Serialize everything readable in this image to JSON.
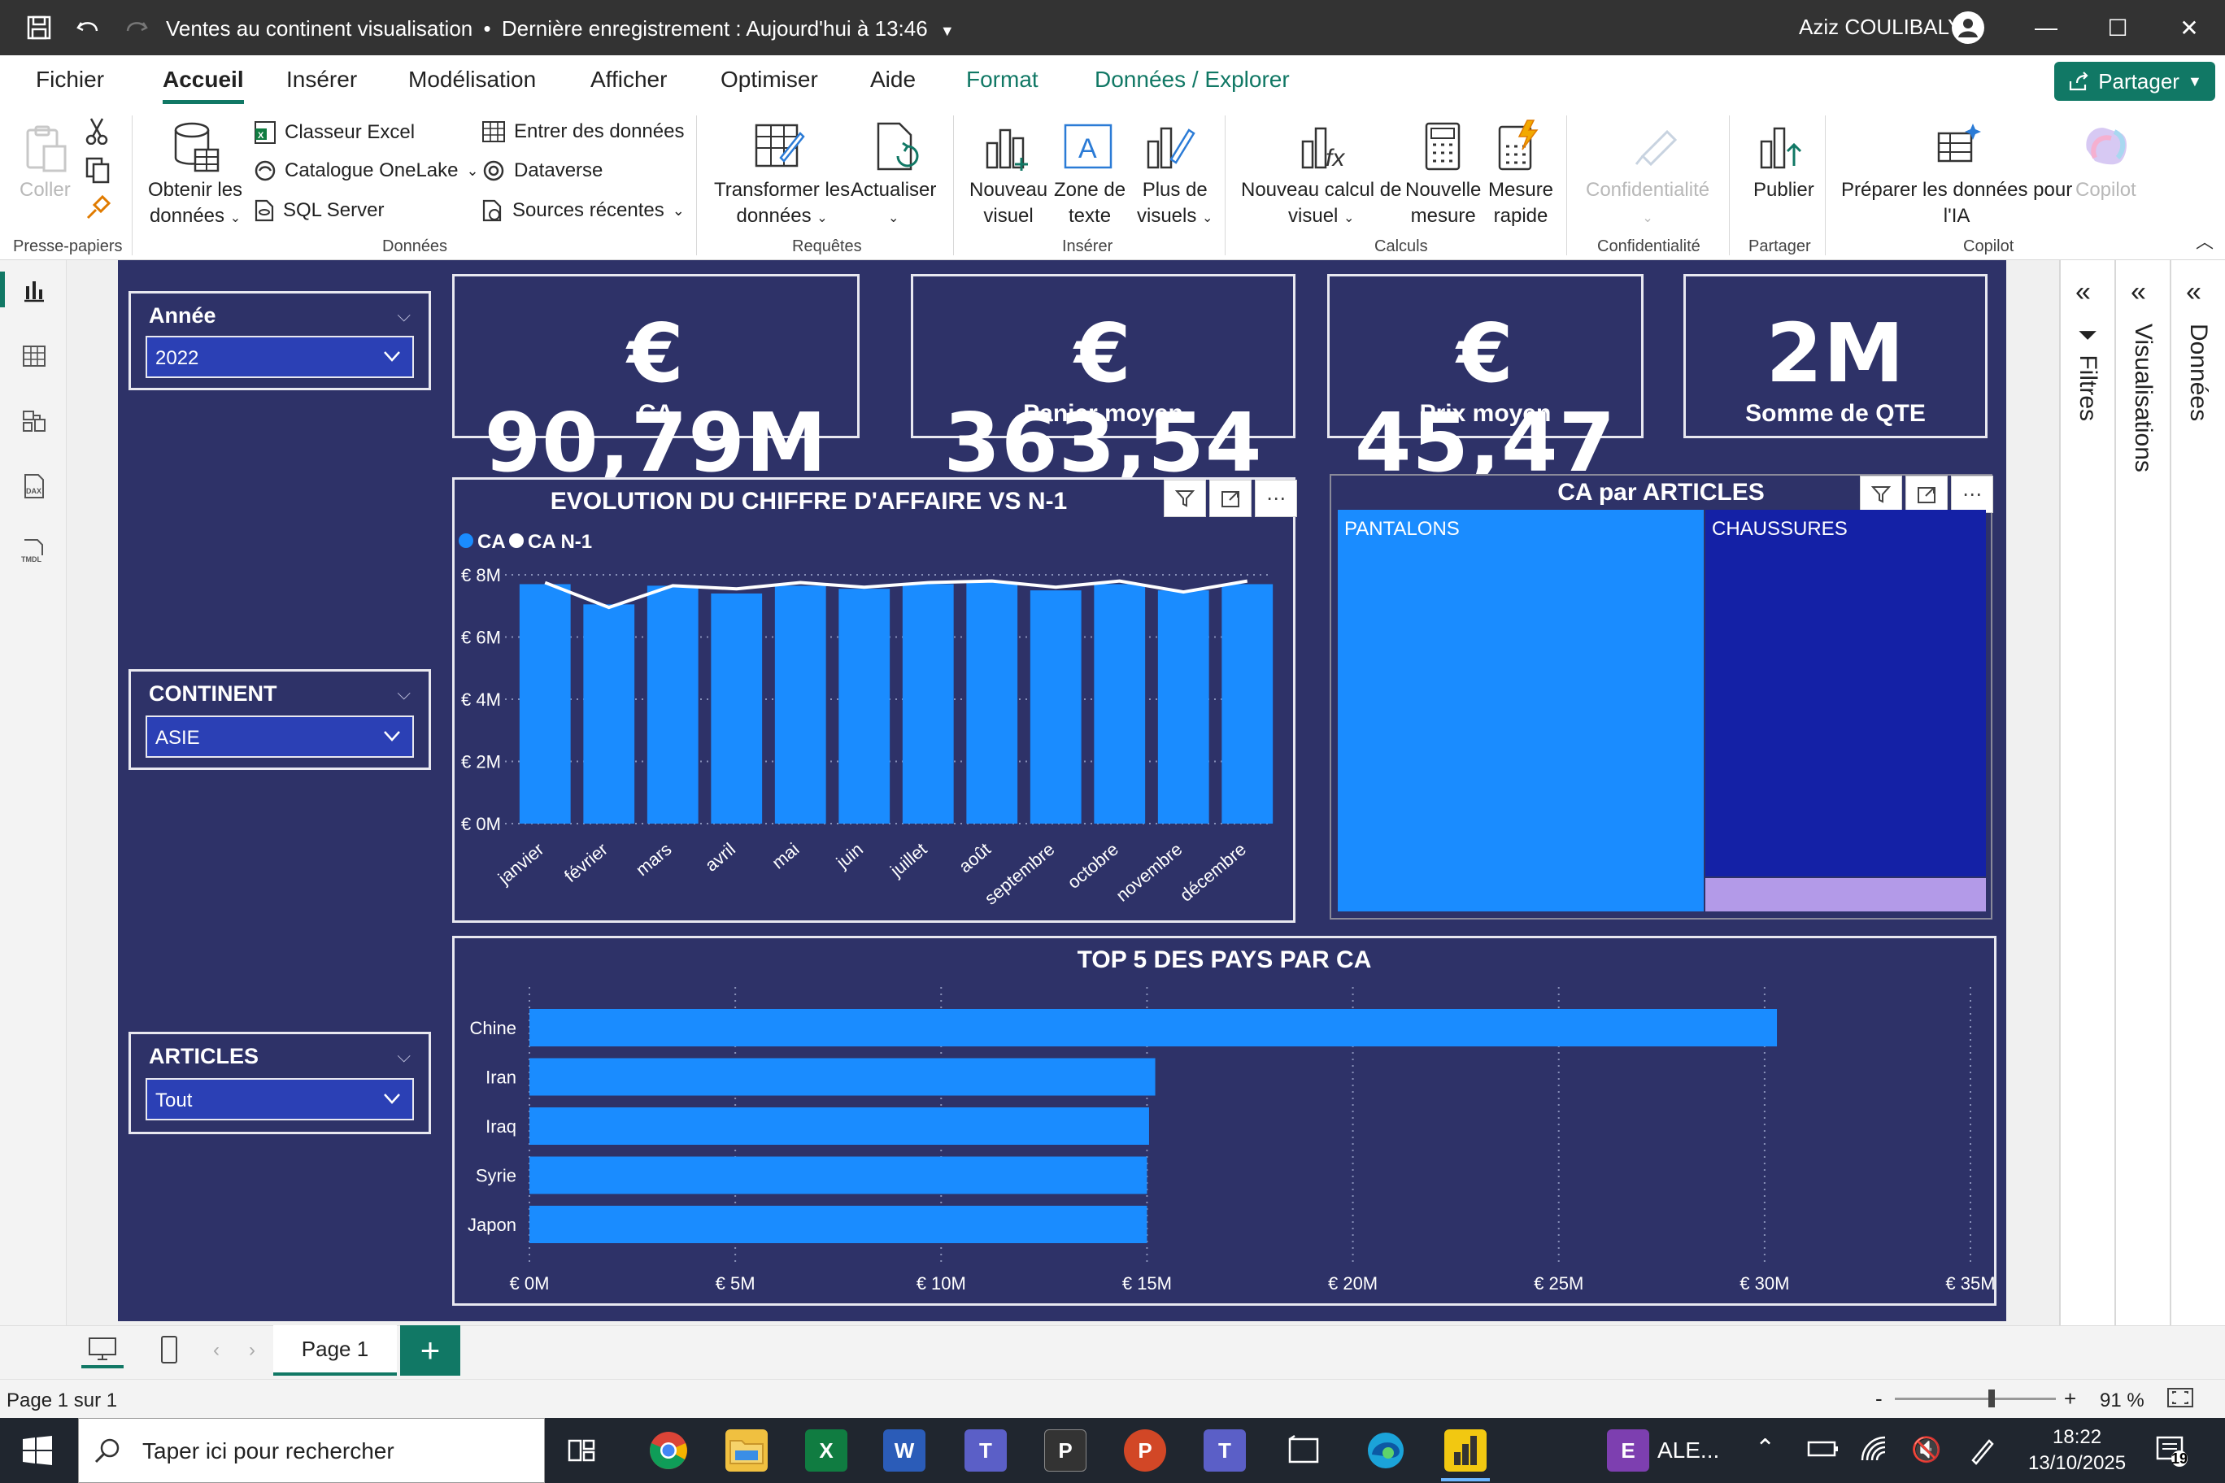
{
  "titlebar": {
    "title": "Ventes au continent visualisation",
    "separator": "•",
    "saved": "Dernière enregistrement : Aujourd'hui à 13:46",
    "user": "Aziz COULIBALY"
  },
  "menu": {
    "tabs": [
      "Fichier",
      "Accueil",
      "Insérer",
      "Modélisation",
      "Afficher",
      "Optimiser",
      "Aide",
      "Format",
      "Données / Explorer"
    ],
    "share_label": "Partager"
  },
  "ribbon": {
    "paste": "Coller",
    "get_data_1": "Obtenir les",
    "get_data_2": "données",
    "excel": "Classeur Excel",
    "onelake": "Catalogue OneLake",
    "sql": "SQL Server",
    "enter_data": "Entrer des données",
    "dataverse": "Dataverse",
    "recent": "Sources récentes",
    "transform_1": "Transformer les",
    "transform_2": "données",
    "refresh": "Actualiser",
    "new_visual_1": "Nouveau",
    "new_visual_2": "visuel",
    "textbox_1": "Zone de",
    "textbox_2": "texte",
    "more_visuals_1": "Plus de",
    "more_visuals_2": "visuels",
    "new_calc_1": "Nouveau calcul de",
    "new_calc_2": "visuel",
    "new_measure_1": "Nouvelle",
    "new_measure_2": "mesure",
    "quick_measure_1": "Mesure",
    "quick_measure_2": "rapide",
    "sensitivity": "Confidentialité",
    "publish": "Publier",
    "prepare_1": "Préparer les données pour",
    "prepare_2": "l'IA",
    "copilot": "Copilot",
    "groups": {
      "clipboard": "Presse-papiers",
      "data": "Données",
      "queries": "Requêtes",
      "insert": "Insérer",
      "calculations": "Calculs",
      "sensitivity": "Confidentialité",
      "share": "Partager",
      "copilot": "Copilot"
    }
  },
  "slicers": [
    {
      "title": "Année",
      "value": "2022"
    },
    {
      "title": "CONTINENT",
      "value": "ASIE"
    },
    {
      "title": "ARTICLES",
      "value": "Tout"
    }
  ],
  "kpis": [
    {
      "value": "€ 90,79M",
      "label": "CA"
    },
    {
      "value": "€ 363,54",
      "label": "Panier moyen"
    },
    {
      "value": "€ 45,47",
      "label": "Prix moyen"
    },
    {
      "value": "2M",
      "label": "Somme de QTE"
    }
  ],
  "chart_data": [
    {
      "type": "bar",
      "title": "EVOLUTION DU CHIFFRE D'AFFAIRE VS N-1",
      "categories": [
        "janvier",
        "février",
        "mars",
        "avril",
        "mai",
        "juin",
        "juillet",
        "août",
        "septembre",
        "octobre",
        "novembre",
        "décembre"
      ],
      "series": [
        {
          "name": "CA",
          "kind": "bar",
          "values": [
            7.7,
            7.05,
            7.65,
            7.4,
            7.65,
            7.55,
            7.7,
            7.75,
            7.5,
            7.7,
            7.5,
            7.7
          ]
        },
        {
          "name": "CA N-1",
          "kind": "line",
          "values": [
            7.75,
            6.95,
            7.65,
            7.55,
            7.75,
            7.6,
            7.75,
            7.8,
            7.6,
            7.8,
            7.45,
            7.8
          ]
        }
      ],
      "ylim": [
        0,
        8
      ],
      "yticks": [
        "€ 0M",
        "€ 2M",
        "€ 4M",
        "€ 6M",
        "€ 8M"
      ],
      "legend": "top-left",
      "colors": {
        "CA": "#1a8cff",
        "CA N-1": "#ffffff"
      },
      "grid": true
    },
    {
      "type": "treemap",
      "title": "CA par ARTICLES",
      "items": [
        {
          "label": "PANTALONS",
          "share": 0.567,
          "color": "#1a8cff"
        },
        {
          "label": "CHAUSSURES",
          "share": 0.397,
          "color": "#1421a6"
        },
        {
          "label": "",
          "share": 0.036,
          "color": "#b39ae8"
        }
      ]
    },
    {
      "type": "bar",
      "orientation": "horizontal",
      "title": "TOP 5 DES PAYS PAR CA",
      "categories": [
        "Chine",
        "Iran",
        "Iraq",
        "Syrie",
        "Japon"
      ],
      "values": [
        30.3,
        15.2,
        15.05,
        15.0,
        15.0
      ],
      "xlim": [
        0,
        35
      ],
      "xticks": [
        "€ 0M",
        "€ 5M",
        "€ 10M",
        "€ 15M",
        "€ 20M",
        "€ 25M",
        "€ 30M",
        "€ 35M"
      ],
      "colors": {
        "bar": "#1a8cff"
      },
      "grid": true
    }
  ],
  "panes": {
    "filters": "Filtres",
    "visualizations": "Visualisations",
    "data": "Données"
  },
  "pages": {
    "current": "Page 1",
    "add": "+"
  },
  "status": {
    "page_info": "Page 1 sur 1",
    "zoom": "91 %",
    "zoom_level": 0.6
  },
  "taskbar": {
    "search_placeholder": "Taper ici pour rechercher",
    "app_label": "ALE...",
    "time": "18:22",
    "date": "13/10/2025",
    "notif_count": "19"
  }
}
